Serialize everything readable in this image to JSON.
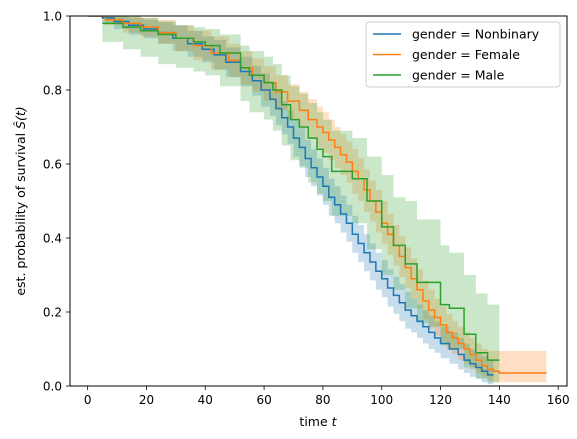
{
  "chart_data": {
    "type": "line",
    "title": "",
    "xlabel": "time",
    "xlabel_var": "t",
    "ylabel_prefix": "est. probability of survival",
    "ylabel_math": "Ŝ(t)",
    "xlim": [
      -6,
      163
    ],
    "ylim": [
      0,
      1
    ],
    "xticks": [
      0,
      20,
      40,
      60,
      80,
      100,
      120,
      140,
      160
    ],
    "yticks": [
      0.0,
      0.2,
      0.4,
      0.6,
      0.8,
      1.0
    ],
    "xtick_labels": [
      "0",
      "20",
      "40",
      "60",
      "80",
      "100",
      "120",
      "140",
      "160"
    ],
    "ytick_labels": [
      "0.0",
      "0.2",
      "0.4",
      "0.6",
      "0.8",
      "1.0"
    ],
    "grid": false,
    "legend_position": "top-right",
    "step": "post",
    "series": [
      {
        "name": "gender = Nonbinary",
        "color": "#1f77b4",
        "x": [
          0,
          5,
          9,
          14,
          19,
          24,
          29,
          34,
          39,
          43,
          47,
          52,
          56,
          59,
          62,
          64,
          66,
          68,
          70,
          72,
          74,
          76,
          78,
          80,
          82,
          84,
          86,
          88,
          90,
          92,
          94,
          96,
          98,
          100,
          102,
          104,
          106,
          108,
          110,
          112,
          114,
          116,
          118,
          120,
          123,
          126,
          128,
          130,
          132,
          134,
          136,
          138
        ],
        "y": [
          1.0,
          0.995,
          0.985,
          0.975,
          0.965,
          0.955,
          0.94,
          0.925,
          0.91,
          0.895,
          0.875,
          0.85,
          0.825,
          0.8,
          0.775,
          0.75,
          0.725,
          0.7,
          0.67,
          0.645,
          0.615,
          0.59,
          0.565,
          0.54,
          0.51,
          0.49,
          0.465,
          0.44,
          0.41,
          0.385,
          0.36,
          0.335,
          0.31,
          0.29,
          0.265,
          0.245,
          0.225,
          0.205,
          0.19,
          0.175,
          0.16,
          0.145,
          0.13,
          0.115,
          0.1,
          0.085,
          0.07,
          0.06,
          0.05,
          0.04,
          0.03,
          0.03
        ],
        "ci_upper": [
          1.0,
          1.0,
          1.0,
          0.995,
          0.99,
          0.985,
          0.975,
          0.96,
          0.945,
          0.935,
          0.915,
          0.89,
          0.865,
          0.845,
          0.82,
          0.795,
          0.77,
          0.745,
          0.72,
          0.695,
          0.665,
          0.64,
          0.615,
          0.59,
          0.56,
          0.54,
          0.515,
          0.49,
          0.46,
          0.435,
          0.41,
          0.385,
          0.36,
          0.34,
          0.315,
          0.295,
          0.275,
          0.255,
          0.235,
          0.22,
          0.205,
          0.19,
          0.175,
          0.16,
          0.145,
          0.13,
          0.115,
          0.1,
          0.09,
          0.08,
          0.07,
          0.07
        ],
        "ci_lower": [
          1.0,
          0.98,
          0.965,
          0.95,
          0.94,
          0.925,
          0.905,
          0.89,
          0.875,
          0.855,
          0.835,
          0.81,
          0.785,
          0.755,
          0.73,
          0.705,
          0.68,
          0.655,
          0.62,
          0.595,
          0.565,
          0.54,
          0.515,
          0.49,
          0.46,
          0.44,
          0.415,
          0.39,
          0.36,
          0.335,
          0.31,
          0.285,
          0.26,
          0.24,
          0.215,
          0.195,
          0.175,
          0.155,
          0.145,
          0.13,
          0.115,
          0.1,
          0.09,
          0.075,
          0.06,
          0.045,
          0.035,
          0.025,
          0.02,
          0.01,
          0.005,
          0.005
        ]
      },
      {
        "name": "gender = Female",
        "color": "#ff7f0e",
        "x": [
          3,
          6,
          12,
          18,
          24,
          30,
          36,
          42,
          48,
          52,
          56,
          60,
          64,
          68,
          72,
          75,
          78,
          80,
          82,
          84,
          86,
          88,
          90,
          92,
          94,
          96,
          98,
          100,
          102,
          104,
          106,
          108,
          110,
          112,
          114,
          116,
          118,
          120,
          122,
          124,
          126,
          128,
          130,
          132,
          134,
          136,
          138,
          140,
          156
        ],
        "y": [
          1.0,
          0.99,
          0.98,
          0.97,
          0.955,
          0.94,
          0.92,
          0.9,
          0.88,
          0.86,
          0.84,
          0.82,
          0.795,
          0.77,
          0.745,
          0.72,
          0.7,
          0.685,
          0.665,
          0.645,
          0.625,
          0.605,
          0.58,
          0.56,
          0.53,
          0.5,
          0.47,
          0.44,
          0.41,
          0.38,
          0.35,
          0.32,
          0.29,
          0.26,
          0.23,
          0.205,
          0.185,
          0.165,
          0.145,
          0.13,
          0.115,
          0.1,
          0.085,
          0.07,
          0.055,
          0.045,
          0.04,
          0.035,
          0.035
        ],
        "ci_upper": [
          1.0,
          1.0,
          1.0,
          0.995,
          0.99,
          0.975,
          0.96,
          0.945,
          0.925,
          0.905,
          0.885,
          0.865,
          0.84,
          0.815,
          0.795,
          0.775,
          0.755,
          0.74,
          0.72,
          0.7,
          0.68,
          0.66,
          0.64,
          0.615,
          0.585,
          0.555,
          0.53,
          0.5,
          0.465,
          0.435,
          0.405,
          0.375,
          0.345,
          0.315,
          0.285,
          0.26,
          0.235,
          0.215,
          0.195,
          0.175,
          0.16,
          0.145,
          0.13,
          0.115,
          0.1,
          0.095,
          0.095,
          0.095,
          0.095
        ],
        "ci_lower": [
          1.0,
          0.975,
          0.955,
          0.945,
          0.925,
          0.905,
          0.88,
          0.855,
          0.835,
          0.815,
          0.795,
          0.77,
          0.745,
          0.72,
          0.695,
          0.67,
          0.645,
          0.63,
          0.61,
          0.59,
          0.57,
          0.55,
          0.52,
          0.5,
          0.47,
          0.445,
          0.415,
          0.385,
          0.355,
          0.325,
          0.295,
          0.265,
          0.235,
          0.21,
          0.18,
          0.155,
          0.135,
          0.12,
          0.1,
          0.085,
          0.07,
          0.06,
          0.045,
          0.035,
          0.025,
          0.015,
          0.01,
          0.01,
          0.01
        ]
      },
      {
        "name": "gender = Male",
        "color": "#2ca02c",
        "x": [
          5,
          12,
          18,
          24,
          30,
          36,
          40,
          45,
          52,
          55,
          60,
          63,
          66,
          69,
          72,
          75,
          78,
          80,
          83,
          86,
          90,
          95,
          100,
          104,
          108,
          112,
          116,
          120,
          123,
          128,
          132,
          136,
          140
        ],
        "y": [
          0.98,
          0.97,
          0.96,
          0.95,
          0.94,
          0.93,
          0.92,
          0.9,
          0.86,
          0.84,
          0.82,
          0.8,
          0.76,
          0.72,
          0.7,
          0.67,
          0.64,
          0.62,
          0.58,
          0.58,
          0.56,
          0.5,
          0.43,
          0.38,
          0.33,
          0.28,
          0.28,
          0.22,
          0.21,
          0.14,
          0.09,
          0.07,
          0.07
        ],
        "ci_upper": [
          1.0,
          1.0,
          0.995,
          0.985,
          0.975,
          0.97,
          0.965,
          0.95,
          0.92,
          0.905,
          0.89,
          0.87,
          0.84,
          0.81,
          0.79,
          0.765,
          0.74,
          0.72,
          0.69,
          0.69,
          0.67,
          0.62,
          0.57,
          0.51,
          0.5,
          0.45,
          0.45,
          0.38,
          0.36,
          0.3,
          0.25,
          0.22,
          0.22
        ],
        "ci_lower": [
          0.93,
          0.91,
          0.89,
          0.87,
          0.86,
          0.85,
          0.84,
          0.81,
          0.77,
          0.74,
          0.72,
          0.69,
          0.65,
          0.61,
          0.59,
          0.55,
          0.52,
          0.5,
          0.46,
          0.46,
          0.44,
          0.37,
          0.3,
          0.26,
          0.21,
          0.17,
          0.16,
          0.11,
          0.1,
          0.05,
          0.02,
          0.01,
          0.01
        ]
      }
    ]
  }
}
